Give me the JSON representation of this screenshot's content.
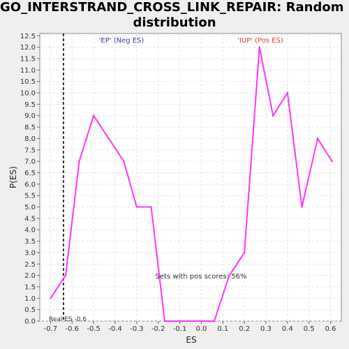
{
  "title_line1": "GO_INTERSTRAND_CROSS_LINK_REPAIR: Random ES",
  "title_line2": "distribution",
  "chart_data": {
    "type": "line",
    "xlabel": "ES",
    "ylabel": "P(ES)",
    "xlim": [
      -0.75,
      0.65
    ],
    "ylim": [
      0,
      12.6
    ],
    "xticks": [
      -0.7,
      -0.6,
      -0.5,
      -0.4,
      -0.3,
      -0.2,
      -0.1,
      0.0,
      0.1,
      0.2,
      0.3,
      0.4,
      0.5,
      0.6
    ],
    "xtick_labels": [
      "-0.7",
      "-0.6",
      "-0.5",
      "-0.4",
      "-0.3",
      "-0.2",
      "-0.1",
      "0.0",
      "0.1",
      "0.2",
      "0.3",
      "0.4",
      "0.5",
      "0.6"
    ],
    "yticks": [
      0,
      0.5,
      1,
      1.5,
      2,
      2.5,
      3,
      3.5,
      4,
      4.5,
      5,
      5.5,
      6,
      6.5,
      7,
      7.5,
      8,
      8.5,
      9,
      9.5,
      10,
      10.5,
      11,
      11.5,
      12,
      12.5
    ],
    "ytick_labels": [
      "0.0",
      "0.5",
      "1.0",
      "1.5",
      "2.0",
      "2.5",
      "3.0",
      "3.5",
      "4.0",
      "4.5",
      "5.0",
      "5.5",
      "6.0",
      "6.5",
      "7.0",
      "7.5",
      "8.0",
      "8.5",
      "9.0",
      "9.5",
      "10.0",
      "10.5",
      "11.0",
      "11.5",
      "12.0",
      "12.5"
    ],
    "grid": true,
    "series": [
      {
        "color": "#ff33ff",
        "x": [
          -0.7,
          -0.63,
          -0.567,
          -0.5,
          -0.43,
          -0.36,
          -0.3,
          -0.233,
          -0.17,
          -0.1,
          0.0,
          0.06,
          0.13,
          0.2,
          0.27,
          0.333,
          0.4,
          0.467,
          0.54,
          0.607
        ],
        "y": [
          1.0,
          2.0,
          7.0,
          9.0,
          8.0,
          7.0,
          5.0,
          5.0,
          0.0,
          0.0,
          0.0,
          0.0,
          2.0,
          3.0,
          12.0,
          9.0,
          10.0,
          5.0,
          8.0,
          7.0
        ]
      }
    ],
    "real_es": -0.64,
    "annotations": {
      "neg_label": "'EP' (Neg ES)",
      "neg_color": "#3333cc",
      "pos_label": "'IUP' (Pos ES)",
      "pos_color": "#e03a3a",
      "sets_text": "Sets with pos scores: 56%",
      "real_es_text": "Real ES -0.6"
    }
  }
}
